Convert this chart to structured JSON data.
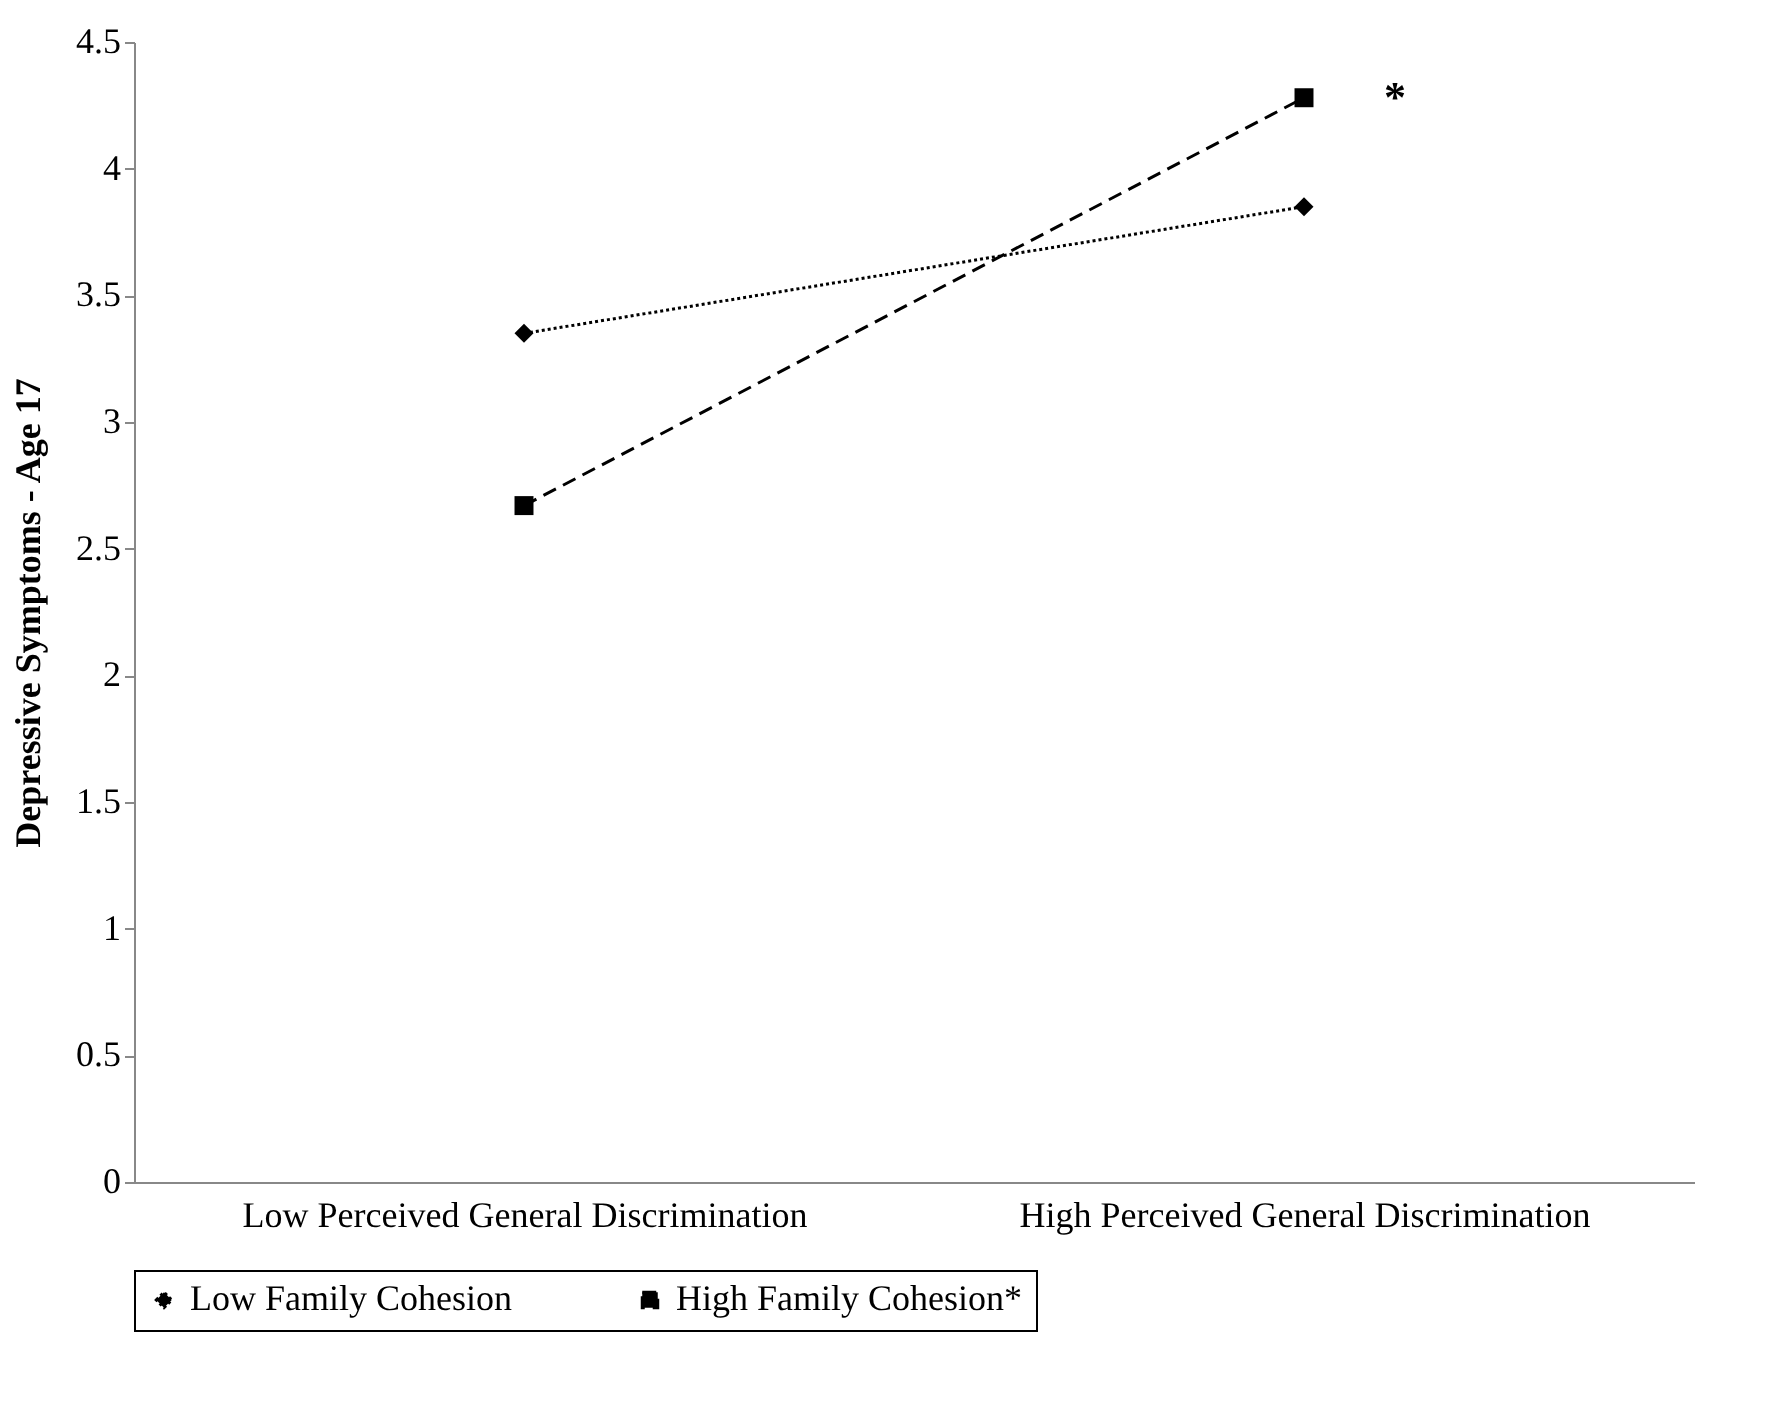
{
  "chart_data": {
    "type": "line",
    "ylabel": "Depressive Symptoms - Age 17",
    "categories": [
      "Low Perceived General Discrimination",
      "High Perceived General Discrimination"
    ],
    "series": [
      {
        "name": "Low Family Cohesion",
        "color": "#000000",
        "values": [
          3.35,
          3.85
        ],
        "marker": "diamond",
        "line_style": "dotted"
      },
      {
        "name": "High Family Cohesion*",
        "color": "#000000",
        "values": [
          2.67,
          4.28
        ],
        "marker": "square",
        "line_style": "dashed"
      }
    ],
    "ylim": [
      0,
      4.5
    ],
    "yticks": [
      0,
      0.5,
      1,
      1.5,
      2,
      2.5,
      3,
      3.5,
      4,
      4.5
    ],
    "grid": false,
    "legend": "bottom",
    "annotations": [
      {
        "text": "*",
        "x": "High Perceived General Discrimination",
        "y": 4.28
      }
    ]
  }
}
